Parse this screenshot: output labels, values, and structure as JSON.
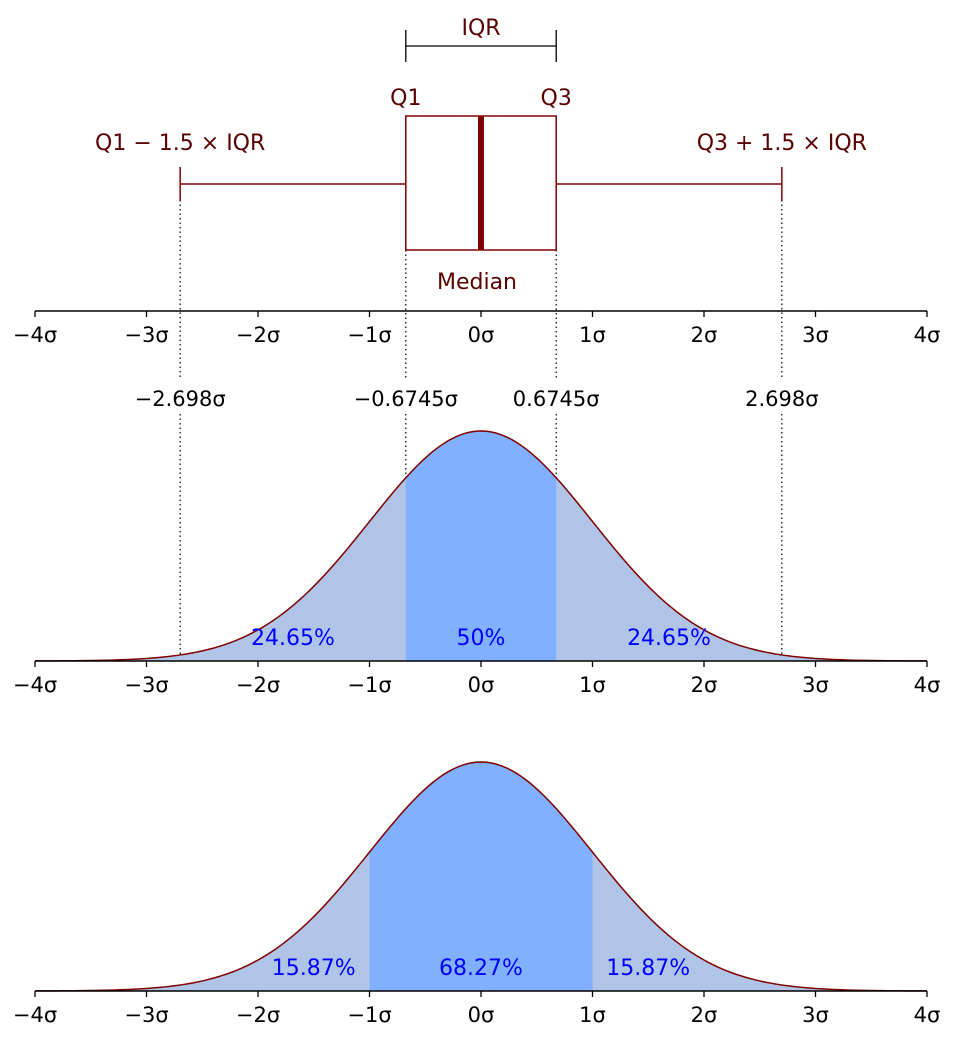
{
  "chart_data": [
    {
      "type": "boxplot",
      "xlim": [
        -4,
        4
      ],
      "x_ticks": [
        -4,
        -3,
        -2,
        -1,
        0,
        1,
        2,
        3,
        4
      ],
      "x_tick_labels": [
        "−4σ",
        "−3σ",
        "−2σ",
        "−1σ",
        "0σ",
        "1σ",
        "2σ",
        "3σ",
        "4σ"
      ],
      "q1": -0.6745,
      "median": 0,
      "q3": 0.6745,
      "whisker_low": -2.698,
      "whisker_high": 2.698,
      "annotations": {
        "iqr": "IQR",
        "q1": "Q1",
        "q3": "Q3",
        "lower_fence": "Q1 − 1.5 × IQR",
        "upper_fence": "Q3 + 1.5 × IQR",
        "median": "Median"
      },
      "color": "#800000",
      "text_color": "#5a0000"
    },
    {
      "type": "area",
      "curve": "standard normal density",
      "xlim": [
        -4,
        4
      ],
      "x_ticks": [
        -4,
        -3,
        -2,
        -1,
        0,
        1,
        2,
        3,
        4
      ],
      "x_tick_labels": [
        "−4σ",
        "−3σ",
        "−2σ",
        "−1σ",
        "0σ",
        "1σ",
        "2σ",
        "3σ",
        "4σ"
      ],
      "markers": [
        {
          "x": -2.698,
          "label": "−2.698σ"
        },
        {
          "x": -0.6745,
          "label": "−0.6745σ"
        },
        {
          "x": 0.6745,
          "label": "0.6745σ"
        },
        {
          "x": 2.698,
          "label": "2.698σ"
        }
      ],
      "highlight_range": [
        -0.6745,
        0.6745
      ],
      "regions": [
        {
          "from": -2.698,
          "to": -0.6745,
          "label": "24.65%"
        },
        {
          "from": -0.6745,
          "to": 0.6745,
          "label": "50%"
        },
        {
          "from": 0.6745,
          "to": 2.698,
          "label": "24.65%"
        }
      ],
      "fill_color": "#b0c4e8",
      "highlight_color": "#80b0ff",
      "line_color": "#800000",
      "label_color": "#0000ff"
    },
    {
      "type": "area",
      "curve": "standard normal density",
      "xlim": [
        -4,
        4
      ],
      "x_ticks": [
        -4,
        -3,
        -2,
        -1,
        0,
        1,
        2,
        3,
        4
      ],
      "x_tick_labels": [
        "−4σ",
        "−3σ",
        "−2σ",
        "−1σ",
        "0σ",
        "1σ",
        "2σ",
        "3σ",
        "4σ"
      ],
      "highlight_range": [
        -1,
        1
      ],
      "regions": [
        {
          "from": -2,
          "to": -1,
          "label": "15.87%"
        },
        {
          "from": -1,
          "to": 1,
          "label": "68.27%"
        },
        {
          "from": 1,
          "to": 2,
          "label": "15.87%"
        }
      ],
      "fill_color": "#b0c4e8",
      "highlight_color": "#80b0ff",
      "line_color": "#800000",
      "label_color": "#0000ff"
    }
  ]
}
